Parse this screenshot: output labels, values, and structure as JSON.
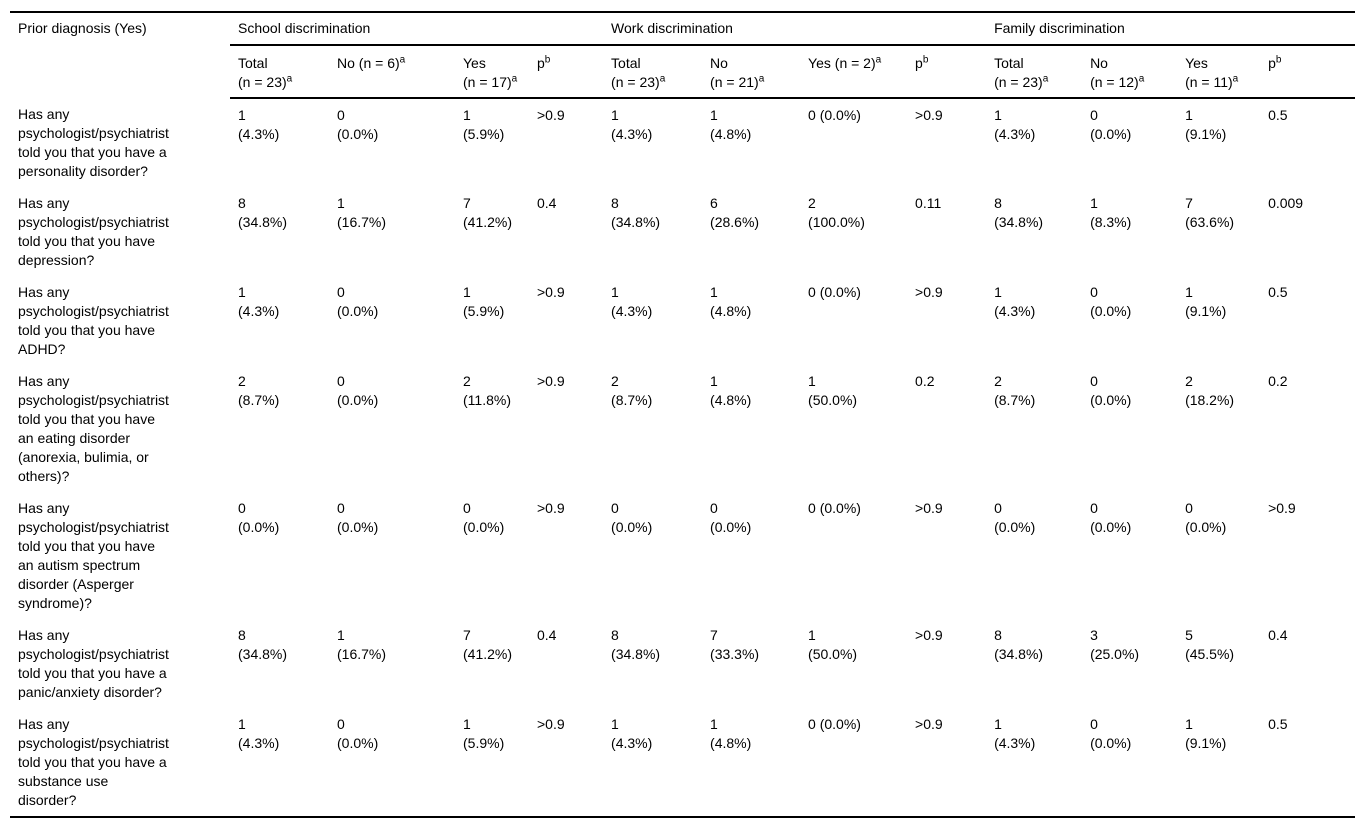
{
  "table": {
    "row_header": "Prior diagnosis (Yes)",
    "groups": [
      {
        "label": "School discrimination"
      },
      {
        "label": "Work discrimination"
      },
      {
        "label": "Family discrimination"
      }
    ],
    "columns": [
      {
        "text": "Total\n(n = 23)",
        "sup": "a"
      },
      {
        "text": "No (n = 6)",
        "sup": "a"
      },
      {
        "text": "Yes\n(n = 17)",
        "sup": "a"
      },
      {
        "text": "p",
        "sup": "b"
      },
      {
        "text": "Total\n(n = 23)",
        "sup": "a"
      },
      {
        "text": "No\n(n = 21)",
        "sup": "a"
      },
      {
        "text": "Yes (n = 2)",
        "sup": "a"
      },
      {
        "text": "p",
        "sup": "b"
      },
      {
        "text": "Total\n(n = 23)",
        "sup": "a"
      },
      {
        "text": "No\n(n = 12)",
        "sup": "a"
      },
      {
        "text": "Yes\n(n = 11)",
        "sup": "a"
      },
      {
        "text": "p",
        "sup": "b"
      }
    ],
    "rows": [
      {
        "question": "Has any\npsychologist/psychiatrist\ntold you that you have a\npersonality disorder?",
        "cells": [
          "1\n(4.3%)",
          "0\n(0.0%)",
          "1\n(5.9%)",
          ">0.9",
          "1\n(4.3%)",
          "1\n(4.8%)",
          "0 (0.0%)",
          ">0.9",
          "1\n(4.3%)",
          "0\n(0.0%)",
          "1\n(9.1%)",
          "0.5"
        ]
      },
      {
        "question": "Has any\npsychologist/psychiatrist\ntold you that you have\ndepression?",
        "cells": [
          "8\n(34.8%)",
          "1\n(16.7%)",
          "7\n(41.2%)",
          "0.4",
          "8\n(34.8%)",
          "6\n(28.6%)",
          "2\n(100.0%)",
          "0.11",
          "8\n(34.8%)",
          "1\n(8.3%)",
          "7\n(63.6%)",
          "0.009"
        ]
      },
      {
        "question": "Has any\npsychologist/psychiatrist\ntold you that you have\nADHD?",
        "cells": [
          "1\n(4.3%)",
          "0\n(0.0%)",
          "1\n(5.9%)",
          ">0.9",
          "1\n(4.3%)",
          "1\n(4.8%)",
          "0 (0.0%)",
          ">0.9",
          "1\n(4.3%)",
          "0\n(0.0%)",
          "1\n(9.1%)",
          "0.5"
        ]
      },
      {
        "question": "Has any\npsychologist/psychiatrist\ntold you that you have\nan eating disorder\n(anorexia, bulimia, or\nothers)?",
        "cells": [
          "2\n(8.7%)",
          "0\n(0.0%)",
          "2\n(11.8%)",
          ">0.9",
          "2\n(8.7%)",
          "1\n(4.8%)",
          "1\n(50.0%)",
          "0.2",
          "2\n(8.7%)",
          "0\n(0.0%)",
          "2\n(18.2%)",
          "0.2"
        ]
      },
      {
        "question": "Has any\npsychologist/psychiatrist\ntold you that you have\nan autism spectrum\ndisorder (Asperger\nsyndrome)?",
        "cells": [
          "0\n(0.0%)",
          "0\n(0.0%)",
          "0\n(0.0%)",
          ">0.9",
          "0\n(0.0%)",
          "0\n(0.0%)",
          "0 (0.0%)",
          ">0.9",
          "0\n(0.0%)",
          "0\n(0.0%)",
          "0\n(0.0%)",
          ">0.9"
        ]
      },
      {
        "question": "Has any\npsychologist/psychiatrist\ntold you that you have a\npanic/anxiety disorder?",
        "cells": [
          "8\n(34.8%)",
          "1\n(16.7%)",
          "7\n(41.2%)",
          "0.4",
          "8\n(34.8%)",
          "7\n(33.3%)",
          "1\n(50.0%)",
          ">0.9",
          "8\n(34.8%)",
          "3\n(25.0%)",
          "5\n(45.5%)",
          "0.4"
        ]
      },
      {
        "question": "Has any\npsychologist/psychiatrist\ntold you that you have a\nsubstance use\ndisorder?",
        "cells": [
          "1\n(4.3%)",
          "0\n(0.0%)",
          "1\n(5.9%)",
          ">0.9",
          "1\n(4.3%)",
          "1\n(4.8%)",
          "0 (0.0%)",
          ">0.9",
          "1\n(4.3%)",
          "0\n(0.0%)",
          "1\n(9.1%)",
          "0.5"
        ]
      }
    ]
  }
}
